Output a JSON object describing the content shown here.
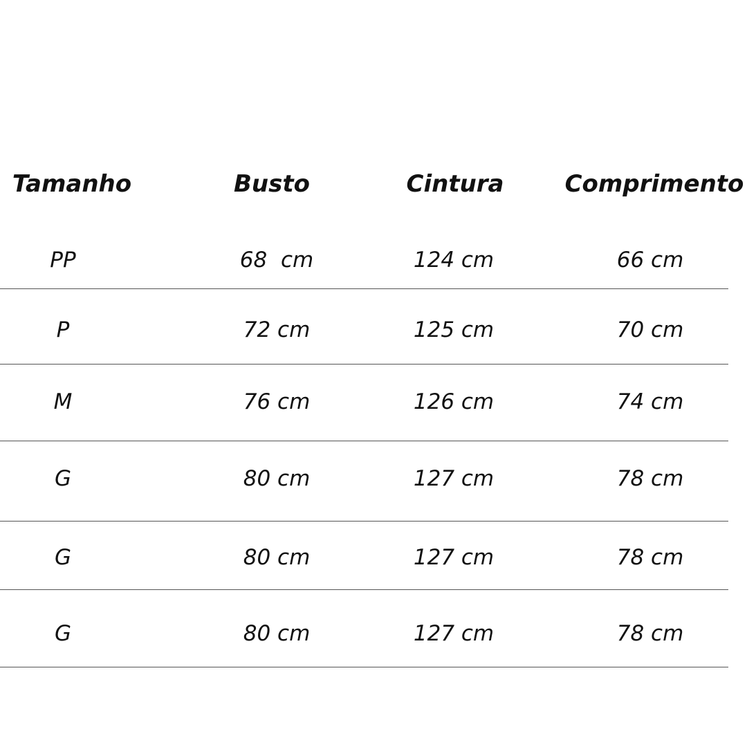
{
  "table": {
    "header": [
      "Tamanho",
      "Busto",
      "Cintura",
      "Comprimento"
    ],
    "rows": [
      [
        "PP",
        "68  cm",
        "124 cm",
        "66 cm"
      ],
      [
        "P",
        "72 cm",
        "125 cm",
        "70 cm"
      ],
      [
        "M",
        "76 cm",
        "126 cm",
        "74 cm"
      ],
      [
        "G",
        "80 cm",
        "127 cm",
        "78 cm"
      ],
      [
        "G",
        "80 cm",
        "127 cm",
        "78 cm"
      ],
      [
        "G",
        "80 cm",
        "127 cm",
        "78 cm"
      ]
    ]
  }
}
